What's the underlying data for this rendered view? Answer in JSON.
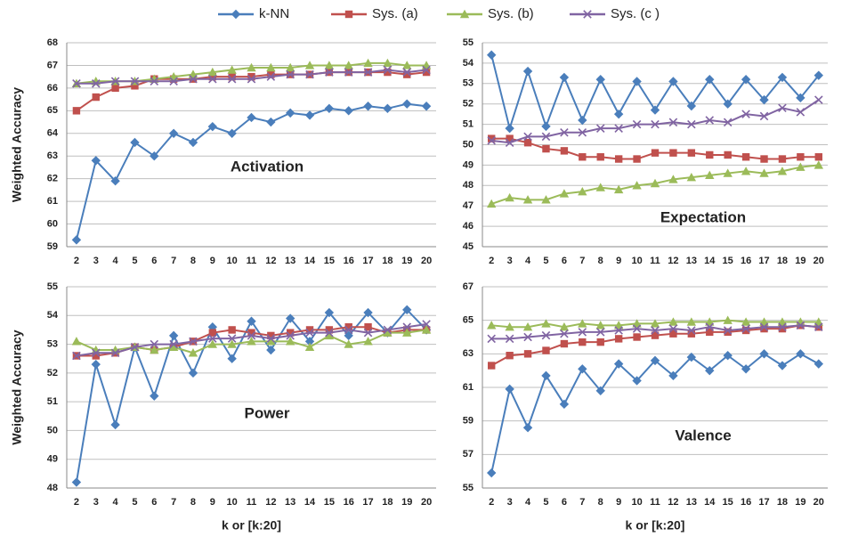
{
  "chart_data": [
    {
      "type": "line",
      "annotation": "Activation",
      "ylabel": "Weighted Accuracy",
      "grid": true,
      "categories": [
        2,
        3,
        4,
        5,
        6,
        7,
        8,
        9,
        10,
        11,
        12,
        13,
        14,
        15,
        16,
        17,
        18,
        19,
        20
      ],
      "ylim": [
        59,
        68
      ],
      "yticks": [
        59,
        60,
        61,
        62,
        63,
        64,
        65,
        66,
        67,
        68
      ],
      "series": [
        {
          "name": "k-NN",
          "color": "#4a7ebb",
          "marker": "diamond",
          "values": [
            59.3,
            62.8,
            61.9,
            63.6,
            63.0,
            64.0,
            63.6,
            64.3,
            64.0,
            64.7,
            64.5,
            64.9,
            64.8,
            65.1,
            65.0,
            65.2,
            65.1,
            65.3,
            65.2
          ]
        },
        {
          "name": "Sys. (a)",
          "color": "#c0504d",
          "marker": "square",
          "values": [
            65.0,
            65.6,
            66.0,
            66.1,
            66.4,
            66.4,
            66.4,
            66.5,
            66.5,
            66.5,
            66.6,
            66.6,
            66.6,
            66.7,
            66.7,
            66.7,
            66.7,
            66.6,
            66.7
          ]
        },
        {
          "name": "Sys. (b)",
          "color": "#9bbb59",
          "marker": "triangle",
          "values": [
            66.2,
            66.3,
            66.3,
            66.3,
            66.4,
            66.5,
            66.6,
            66.7,
            66.8,
            66.9,
            66.9,
            66.9,
            67.0,
            67.0,
            67.0,
            67.1,
            67.1,
            67.0,
            67.0
          ]
        },
        {
          "name": "Sys. (c )",
          "color": "#8064a2",
          "marker": "x",
          "values": [
            66.2,
            66.2,
            66.3,
            66.3,
            66.3,
            66.3,
            66.4,
            66.4,
            66.4,
            66.4,
            66.5,
            66.6,
            66.6,
            66.7,
            66.7,
            66.7,
            66.8,
            66.7,
            66.8
          ]
        }
      ]
    },
    {
      "type": "line",
      "annotation": "Expectation",
      "grid": true,
      "categories": [
        2,
        3,
        4,
        5,
        6,
        7,
        8,
        9,
        10,
        11,
        12,
        13,
        14,
        15,
        16,
        17,
        18,
        19,
        20
      ],
      "ylim": [
        45,
        55
      ],
      "yticks": [
        45,
        46,
        47,
        48,
        49,
        50,
        51,
        52,
        53,
        54,
        55
      ],
      "series": [
        {
          "color": "#4a7ebb",
          "marker": "diamond",
          "values": [
            54.4,
            50.8,
            53.6,
            50.9,
            53.3,
            51.2,
            53.2,
            51.5,
            53.1,
            51.7,
            53.1,
            51.9,
            53.2,
            52.0,
            53.2,
            52.2,
            53.3,
            52.3,
            53.4
          ]
        },
        {
          "color": "#c0504d",
          "marker": "square",
          "values": [
            50.3,
            50.3,
            50.1,
            49.8,
            49.7,
            49.4,
            49.4,
            49.3,
            49.3,
            49.6,
            49.6,
            49.6,
            49.5,
            49.5,
            49.4,
            49.3,
            49.3,
            49.4,
            49.4
          ]
        },
        {
          "color": "#9bbb59",
          "marker": "triangle",
          "values": [
            47.1,
            47.4,
            47.3,
            47.3,
            47.6,
            47.7,
            47.9,
            47.8,
            48.0,
            48.1,
            48.3,
            48.4,
            48.5,
            48.6,
            48.7,
            48.6,
            48.7,
            48.9,
            49.0
          ]
        },
        {
          "color": "#8064a2",
          "marker": "x",
          "values": [
            50.2,
            50.1,
            50.4,
            50.4,
            50.6,
            50.6,
            50.8,
            50.8,
            51.0,
            51.0,
            51.1,
            51.0,
            51.2,
            51.1,
            51.5,
            51.4,
            51.8,
            51.6,
            52.2
          ]
        }
      ]
    },
    {
      "type": "line",
      "annotation": "Power",
      "ylabel": "Weighted Accuracy",
      "xlabel": "k or [k:20]",
      "grid": true,
      "categories": [
        2,
        3,
        4,
        5,
        6,
        7,
        8,
        9,
        10,
        11,
        12,
        13,
        14,
        15,
        16,
        17,
        18,
        19,
        20
      ],
      "ylim": [
        48,
        55
      ],
      "yticks": [
        48,
        49,
        50,
        51,
        52,
        53,
        54,
        55
      ],
      "series": [
        {
          "color": "#4a7ebb",
          "marker": "diamond",
          "values": [
            48.2,
            52.3,
            50.2,
            52.9,
            51.2,
            53.3,
            52.0,
            53.6,
            52.5,
            53.8,
            52.8,
            53.9,
            53.1,
            54.1,
            53.3,
            54.1,
            53.4,
            54.2,
            53.5
          ]
        },
        {
          "color": "#c0504d",
          "marker": "square",
          "values": [
            52.6,
            52.6,
            52.7,
            52.9,
            52.8,
            52.9,
            53.1,
            53.4,
            53.5,
            53.4,
            53.3,
            53.4,
            53.5,
            53.5,
            53.6,
            53.6,
            53.4,
            53.5,
            53.5
          ]
        },
        {
          "color": "#9bbb59",
          "marker": "triangle",
          "values": [
            53.1,
            52.8,
            52.8,
            52.9,
            52.8,
            52.9,
            52.7,
            53.0,
            53.0,
            53.1,
            53.1,
            53.1,
            52.9,
            53.3,
            53.0,
            53.1,
            53.4,
            53.4,
            53.5
          ]
        },
        {
          "color": "#8064a2",
          "marker": "x",
          "values": [
            52.6,
            52.7,
            52.7,
            52.9,
            53.0,
            53.0,
            53.1,
            53.2,
            53.2,
            53.3,
            53.2,
            53.3,
            53.4,
            53.4,
            53.5,
            53.4,
            53.5,
            53.6,
            53.7
          ]
        }
      ]
    },
    {
      "type": "line",
      "annotation": "Valence",
      "xlabel": "k or [k:20]",
      "grid": true,
      "categories": [
        2,
        3,
        4,
        5,
        6,
        7,
        8,
        9,
        10,
        11,
        12,
        13,
        14,
        15,
        16,
        17,
        18,
        19,
        20
      ],
      "ylim": [
        55,
        67
      ],
      "yticks": [
        55,
        57,
        59,
        61,
        63,
        65,
        67
      ],
      "series": [
        {
          "color": "#4a7ebb",
          "marker": "diamond",
          "values": [
            55.9,
            60.9,
            58.6,
            61.7,
            60.0,
            62.1,
            60.8,
            62.4,
            61.4,
            62.6,
            61.7,
            62.8,
            62.0,
            62.9,
            62.1,
            63.0,
            62.3,
            63.0,
            62.4
          ]
        },
        {
          "color": "#c0504d",
          "marker": "square",
          "values": [
            62.3,
            62.9,
            63.0,
            63.2,
            63.6,
            63.7,
            63.7,
            63.9,
            64.0,
            64.1,
            64.2,
            64.2,
            64.3,
            64.3,
            64.4,
            64.5,
            64.5,
            64.7,
            64.6
          ]
        },
        {
          "color": "#9bbb59",
          "marker": "triangle",
          "values": [
            64.7,
            64.6,
            64.6,
            64.8,
            64.6,
            64.8,
            64.7,
            64.7,
            64.8,
            64.8,
            64.9,
            64.9,
            64.9,
            65.0,
            64.9,
            64.9,
            64.9,
            64.9,
            64.9
          ]
        },
        {
          "color": "#8064a2",
          "marker": "x",
          "values": [
            63.9,
            63.9,
            64.0,
            64.1,
            64.2,
            64.3,
            64.3,
            64.4,
            64.5,
            64.4,
            64.5,
            64.4,
            64.6,
            64.4,
            64.5,
            64.6,
            64.6,
            64.7,
            64.6
          ]
        }
      ]
    }
  ]
}
